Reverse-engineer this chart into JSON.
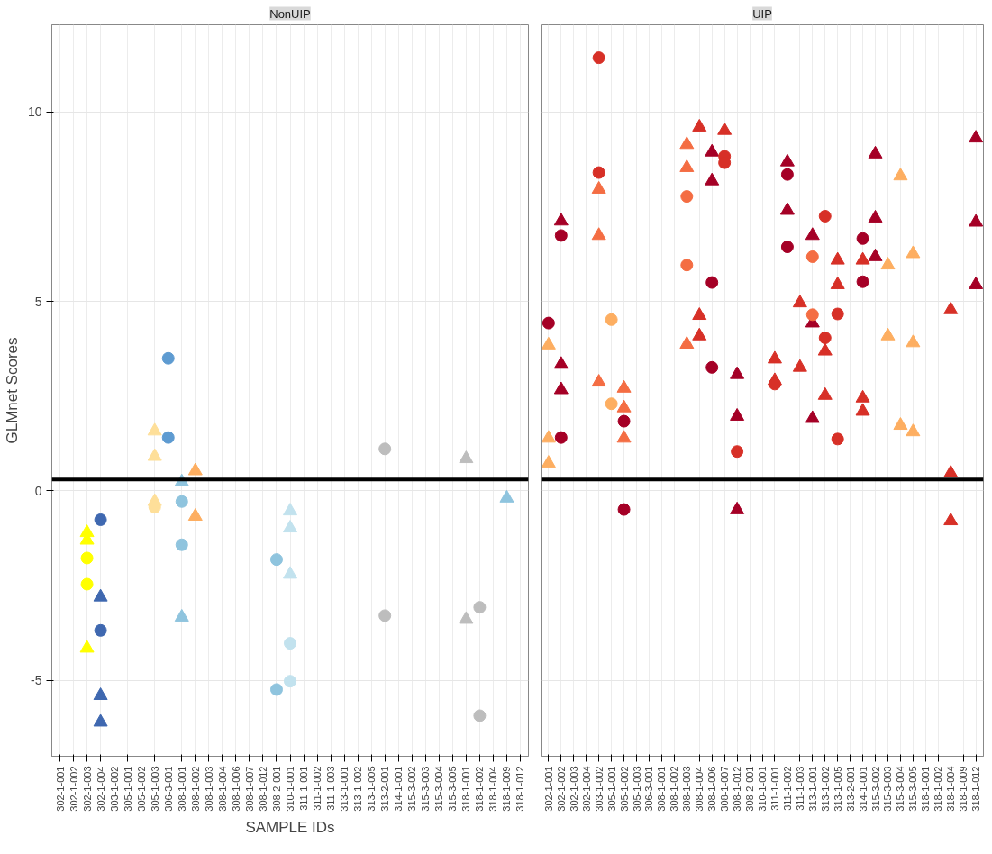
{
  "chart_data": [
    {
      "type": "scatter",
      "title": "NonUIP",
      "xlabel": "SAMPLE IDs",
      "ylabel": "GLMnet Scores",
      "categories": [
        "302-1-001",
        "302-1-002",
        "302-1-003",
        "302-1-004",
        "303-1-002",
        "305-1-001",
        "305-1-002",
        "305-1-003",
        "306-3-001",
        "308-1-001",
        "308-1-002",
        "308-1-003",
        "308-1-004",
        "308-1-006",
        "308-1-007",
        "308-1-012",
        "308-2-001",
        "310-1-001",
        "311-1-001",
        "311-1-002",
        "311-1-003",
        "313-1-001",
        "313-1-002",
        "313-1-005",
        "313-2-001",
        "314-1-001",
        "315-3-002",
        "315-3-003",
        "315-3-004",
        "315-3-005",
        "318-1-001",
        "318-1-002",
        "318-1-004",
        "318-1-009",
        "318-1-012"
      ],
      "ylim": [
        -7,
        12.3
      ],
      "yticks": [
        -5,
        0,
        5,
        10
      ],
      "grid": true,
      "ref_lines": [
        {
          "axis": "y",
          "value": 0.3,
          "color": "#000000"
        }
      ],
      "series": [
        {
          "marker": "triangle",
          "color": "#ffff00",
          "x": [
            "302-1-003",
            "302-1-003",
            "302-1-003"
          ],
          "values": [
            -1.1,
            -1.3,
            -4.15
          ]
        },
        {
          "marker": "circle",
          "color": "#ffff00",
          "x": [
            "302-1-003",
            "302-1-003"
          ],
          "values": [
            -1.77,
            -2.46
          ]
        },
        {
          "marker": "circle",
          "color": "#3f68b0",
          "x": [
            "302-1-004",
            "302-1-004"
          ],
          "values": [
            -0.76,
            -3.68
          ]
        },
        {
          "marker": "triangle",
          "color": "#3f68b0",
          "x": [
            "302-1-004",
            "302-1-004",
            "302-1-004"
          ],
          "values": [
            -2.8,
            -5.4,
            -6.1
          ]
        },
        {
          "marker": "triangle",
          "color": "#fedf99",
          "x": [
            "305-1-003",
            "305-1-003",
            "305-1-003"
          ],
          "values": [
            1.58,
            0.91,
            -0.28
          ]
        },
        {
          "marker": "circle",
          "color": "#fedf99",
          "x": [
            "305-1-003"
          ],
          "values": [
            -0.43
          ]
        },
        {
          "marker": "circle",
          "color": "#5e9bd1",
          "x": [
            "306-3-001",
            "306-3-001"
          ],
          "values": [
            3.5,
            1.41
          ]
        },
        {
          "marker": "triangle",
          "color": "#8fc4de",
          "x": [
            "308-1-001",
            "308-1-001",
            "318-1-009"
          ],
          "values": [
            0.24,
            -3.33,
            -0.19
          ]
        },
        {
          "marker": "circle",
          "color": "#8fc4de",
          "x": [
            "308-1-001",
            "308-1-001",
            "308-2-001",
            "308-2-001"
          ],
          "values": [
            -0.28,
            -1.42,
            -1.81,
            -5.24
          ]
        },
        {
          "marker": "triangle",
          "color": "#fdae61",
          "x": [
            "308-1-002",
            "308-1-002"
          ],
          "values": [
            0.53,
            -0.67
          ]
        },
        {
          "marker": "triangle",
          "color": "#c2e2ee",
          "x": [
            "310-1-001",
            "310-1-001",
            "310-1-001"
          ],
          "values": [
            -0.53,
            -0.98,
            -2.2
          ]
        },
        {
          "marker": "circle",
          "color": "#c2e2ee",
          "x": [
            "310-1-001",
            "310-1-001"
          ],
          "values": [
            -4.02,
            -5.02
          ]
        },
        {
          "marker": "circle",
          "color": "#bdbdbd",
          "x": [
            "313-2-001",
            "313-2-001",
            "318-1-002",
            "318-1-002"
          ],
          "values": [
            1.11,
            -3.29,
            -3.07,
            -5.93
          ]
        },
        {
          "marker": "triangle",
          "color": "#bdbdbd",
          "x": [
            "318-1-001",
            "318-1-001"
          ],
          "values": [
            0.85,
            -3.39
          ]
        }
      ]
    },
    {
      "type": "scatter",
      "title": "UIP",
      "categories": [
        "302-1-001",
        "302-1-002",
        "302-1-003",
        "302-1-004",
        "303-1-002",
        "305-1-001",
        "305-1-002",
        "305-1-003",
        "306-3-001",
        "308-1-001",
        "308-1-002",
        "308-1-003",
        "308-1-004",
        "308-1-006",
        "308-1-007",
        "308-1-012",
        "308-2-001",
        "310-1-001",
        "311-1-001",
        "311-1-002",
        "311-1-003",
        "313-1-001",
        "313-1-002",
        "313-1-005",
        "313-2-001",
        "314-1-001",
        "315-3-002",
        "315-3-003",
        "315-3-004",
        "315-3-005",
        "318-1-001",
        "318-1-002",
        "318-1-004",
        "318-1-009",
        "318-1-012"
      ],
      "ylim": [
        -7,
        12.3
      ],
      "yticks": [
        -5,
        0,
        5,
        10
      ],
      "grid": true,
      "tick_labels": "x",
      "ref_lines": [
        {
          "axis": "y",
          "value": 0.3,
          "color": "#000000"
        }
      ],
      "series": [
        {
          "marker": "circle",
          "color": "#a50026",
          "x": [
            "302-1-001",
            "302-1-002",
            "302-1-002",
            "305-1-002",
            "305-1-002",
            "308-1-006",
            "308-1-006",
            "311-1-002",
            "311-1-002",
            "314-1-001",
            "314-1-001"
          ],
          "values": [
            4.43,
            6.74,
            1.41,
            1.84,
            -0.49,
            5.5,
            3.26,
            8.35,
            6.44,
            6.66,
            5.52
          ]
        },
        {
          "marker": "triangle",
          "color": "#fdae61",
          "x": [
            "302-1-001",
            "302-1-001",
            "302-1-001",
            "315-3-003",
            "315-3-003",
            "315-3-004",
            "315-3-004",
            "315-3-005",
            "315-3-005",
            "315-3-005"
          ],
          "values": [
            3.85,
            1.39,
            0.73,
            5.96,
            4.09,
            8.31,
            1.73,
            6.26,
            3.91,
            1.56
          ]
        },
        {
          "marker": "triangle",
          "color": "#a50026",
          "x": [
            "302-1-002",
            "302-1-002",
            "302-1-002",
            "308-1-006",
            "308-1-006",
            "308-1-012",
            "308-1-012",
            "308-1-012",
            "311-1-002",
            "311-1-002",
            "313-1-001",
            "313-1-001",
            "313-1-001",
            "315-3-002",
            "315-3-002",
            "315-3-002",
            "318-1-012",
            "318-1-012",
            "318-1-012"
          ],
          "values": [
            7.12,
            3.34,
            2.67,
            8.94,
            8.18,
            3.07,
            1.97,
            -0.5,
            8.68,
            7.4,
            6.74,
            4.43,
            1.91,
            8.89,
            7.2,
            6.18,
            9.31,
            7.09,
            5.44
          ]
        },
        {
          "marker": "circle",
          "color": "#d73027",
          "x": [
            "303-1-002",
            "303-1-002",
            "308-1-007",
            "308-1-007",
            "308-1-012",
            "311-1-001",
            "313-1-002",
            "313-1-002",
            "313-1-005",
            "313-1-005"
          ],
          "values": [
            11.43,
            8.4,
            8.83,
            8.66,
            1.04,
            2.82,
            7.25,
            4.04,
            4.67,
            1.37
          ]
        },
        {
          "marker": "triangle",
          "color": "#f46d43",
          "x": [
            "303-1-002",
            "303-1-002",
            "303-1-002",
            "305-1-002",
            "305-1-002",
            "305-1-002",
            "308-1-003",
            "308-1-003",
            "308-1-003"
          ],
          "values": [
            7.96,
            6.74,
            2.87,
            2.71,
            2.19,
            1.39,
            9.14,
            8.53,
            3.87
          ]
        },
        {
          "marker": "circle",
          "color": "#fdae61",
          "x": [
            "305-1-001",
            "305-1-001"
          ],
          "values": [
            4.52,
            2.3
          ]
        },
        {
          "marker": "circle",
          "color": "#f46d43",
          "x": [
            "308-1-003",
            "308-1-003",
            "313-1-001",
            "313-1-001"
          ],
          "values": [
            7.77,
            5.96,
            6.18,
            4.65
          ]
        },
        {
          "marker": "triangle",
          "color": "#d73027",
          "x": [
            "308-1-004",
            "308-1-004",
            "308-1-004",
            "308-1-007",
            "311-1-001",
            "311-1-001",
            "311-1-003",
            "311-1-003",
            "313-1-002",
            "313-1-002",
            "313-1-005",
            "313-1-005",
            "314-1-001",
            "314-1-001",
            "314-1-001",
            "318-1-004",
            "318-1-004",
            "318-1-004"
          ],
          "values": [
            9.6,
            4.63,
            4.09,
            9.51,
            3.48,
            2.91,
            4.96,
            3.26,
            3.69,
            2.52,
            6.09,
            5.44,
            6.09,
            2.45,
            2.1,
            4.78,
            0.47,
            -0.79
          ]
        }
      ]
    }
  ]
}
